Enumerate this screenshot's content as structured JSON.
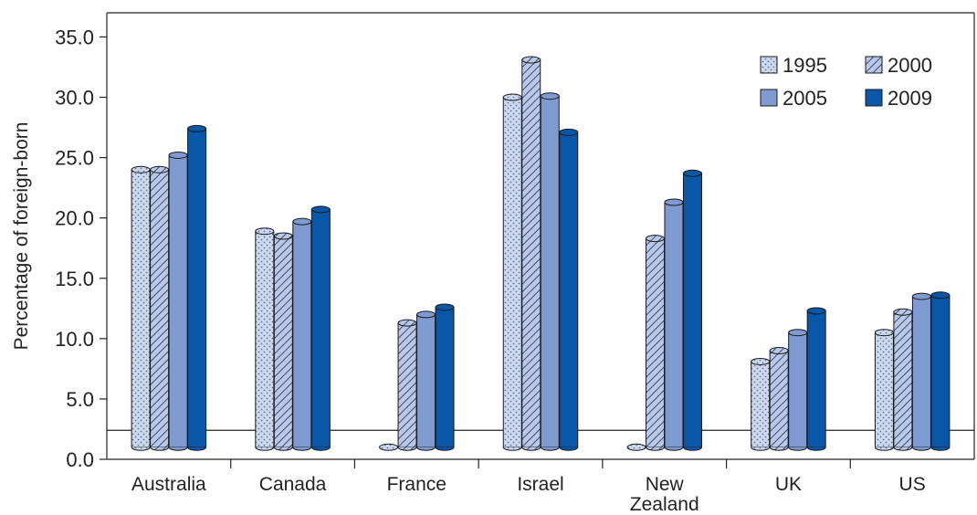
{
  "chart_data": {
    "type": "bar",
    "title": "",
    "xlabel": "",
    "ylabel": "Percentage of foreign-born",
    "ylim": [
      0,
      37.0
    ],
    "yticks": [
      "0.0",
      "5.0",
      "10.0",
      "15.0",
      "20.0",
      "25.0",
      "30.0",
      "35.0"
    ],
    "grid": false,
    "legend_position": "top-right",
    "categories": [
      [
        "Australia"
      ],
      [
        "Canada"
      ],
      [
        "France"
      ],
      [
        "Israel"
      ],
      [
        "New",
        "Zealand"
      ],
      [
        "UK"
      ],
      [
        "US"
      ]
    ],
    "series": [
      {
        "name": "1995",
        "pattern": "dots",
        "color": "#cdd9ee",
        "values": [
          24.0,
          18.9,
          1.0,
          30.0,
          1.0,
          8.1,
          10.5
        ]
      },
      {
        "name": "2000",
        "pattern": "hatch",
        "color": "#a6b8dc",
        "values": [
          24.0,
          18.5,
          11.3,
          33.1,
          18.3,
          9.0,
          12.2
        ]
      },
      {
        "name": "2005",
        "pattern": "solid",
        "color": "#7f9ad0",
        "values": [
          25.2,
          19.7,
          12.0,
          30.1,
          21.3,
          10.5,
          13.5
        ]
      },
      {
        "name": "2009",
        "pattern": "solid",
        "color": "#0a56a8",
        "values": [
          27.4,
          20.7,
          12.6,
          27.1,
          23.7,
          12.3,
          13.6
        ]
      }
    ],
    "baseline_value": 2.4,
    "colors": {
      "axis": "#222222",
      "outline": "#1a1a1a",
      "dot": "#5b6f98",
      "hatch": "#3a4d75"
    }
  }
}
